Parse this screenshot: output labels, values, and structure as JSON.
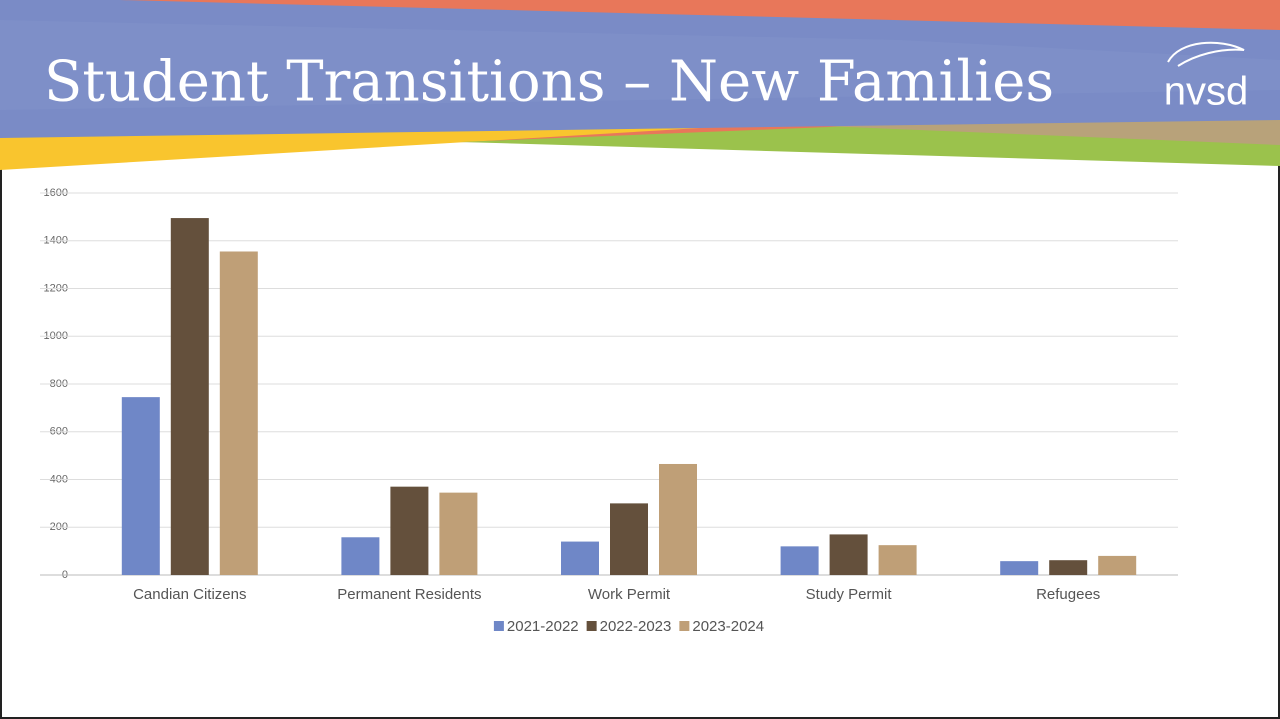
{
  "logo": "nvsd",
  "chart_data": {
    "type": "bar",
    "title": "Student Transitions – New Families",
    "categories": [
      "Candian Citizens",
      "Permanent Residents",
      "Work Permit",
      "Study Permit",
      "Refugees"
    ],
    "series": [
      {
        "name": "2021-2022",
        "color": "#6f87c7",
        "values": [
          745,
          158,
          140,
          120,
          58
        ]
      },
      {
        "name": "2022-2023",
        "color": "#64503c",
        "values": [
          1495,
          370,
          300,
          170,
          62
        ]
      },
      {
        "name": "2023-2024",
        "color": "#bf9f77",
        "values": [
          1355,
          345,
          465,
          125,
          80
        ]
      }
    ],
    "ylim": [
      0,
      1600
    ],
    "yticks": [
      0,
      200,
      400,
      600,
      800,
      1000,
      1200,
      1400,
      1600
    ],
    "grid": true,
    "legend": "bottom"
  }
}
